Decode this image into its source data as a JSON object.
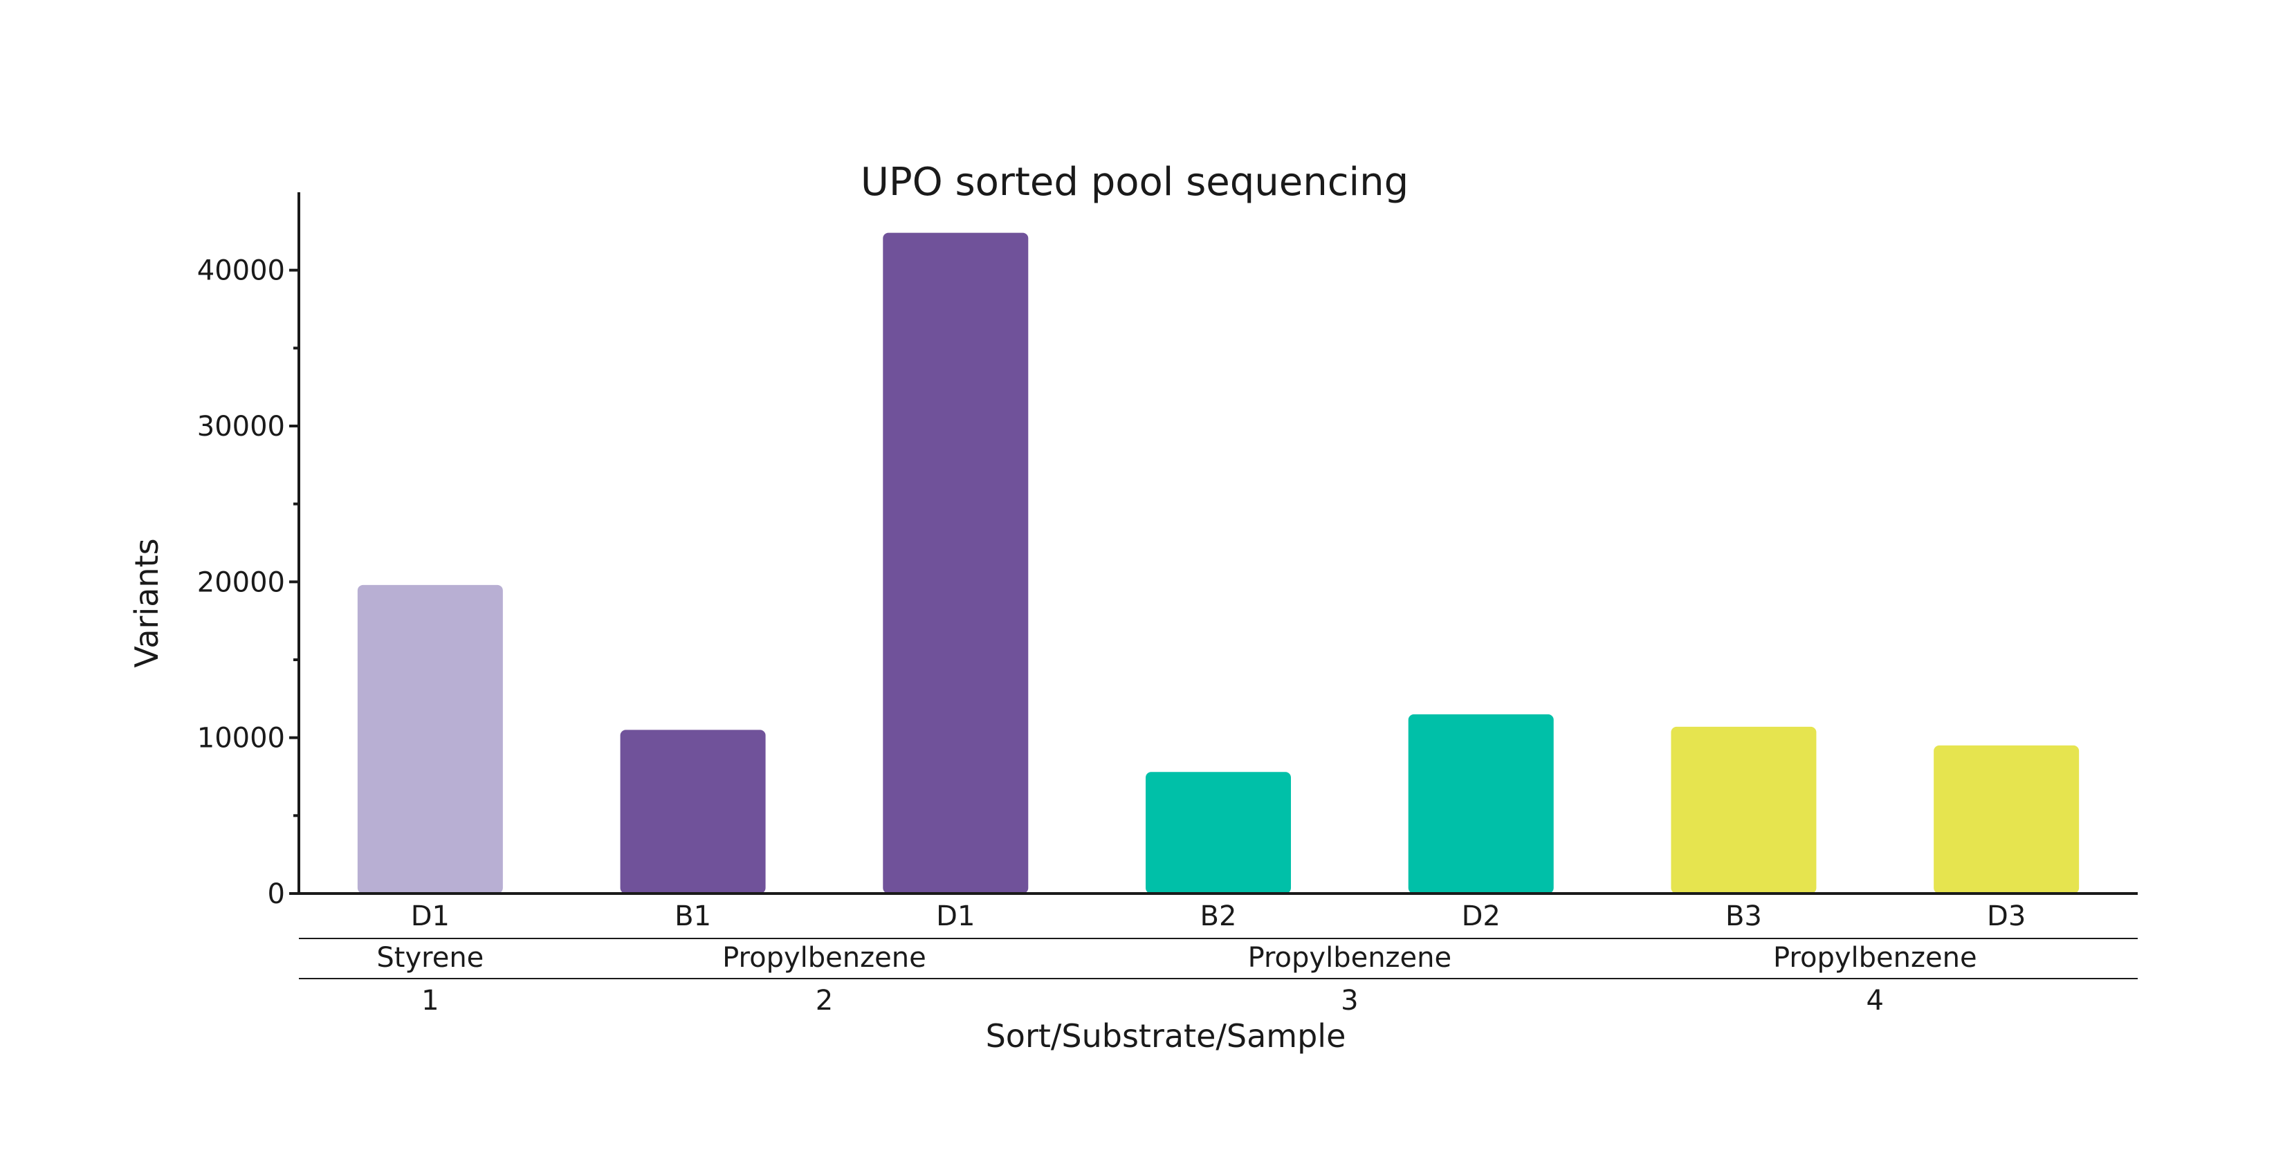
{
  "chart_data": {
    "type": "bar",
    "title": "UPO sorted pool sequencing",
    "xlabel": "Sort/Substrate/Sample",
    "ylabel": "Variants",
    "ylim": [
      0,
      45000
    ],
    "y_ticks": [
      "0",
      "10000",
      "20000",
      "30000",
      "40000"
    ],
    "grid": false,
    "legend": "none",
    "categories": [
      "D1",
      "B1",
      "D1",
      "B2",
      "D2",
      "B3",
      "D3"
    ],
    "values": [
      19800,
      10500,
      42400,
      7800,
      11500,
      10700,
      9500
    ],
    "bar_colors": [
      "#b8afd3",
      "#70529a",
      "#70529a",
      "#00c0a8",
      "#00c0a8",
      "#e6e44f",
      "#e6e44f"
    ],
    "group_levels": {
      "substrate": [
        {
          "label": "Styrene",
          "from": 0,
          "to": 0
        },
        {
          "label": "Propylbenzene",
          "from": 1,
          "to": 2
        },
        {
          "label": "Propylbenzene",
          "from": 3,
          "to": 4
        },
        {
          "label": "Propylbenzene",
          "from": 5,
          "to": 6
        }
      ],
      "sort": [
        {
          "label": "1",
          "from": 0,
          "to": 0
        },
        {
          "label": "2",
          "from": 1,
          "to": 2
        },
        {
          "label": "3",
          "from": 3,
          "to": 4
        },
        {
          "label": "4",
          "from": 5,
          "to": 6
        }
      ]
    }
  }
}
